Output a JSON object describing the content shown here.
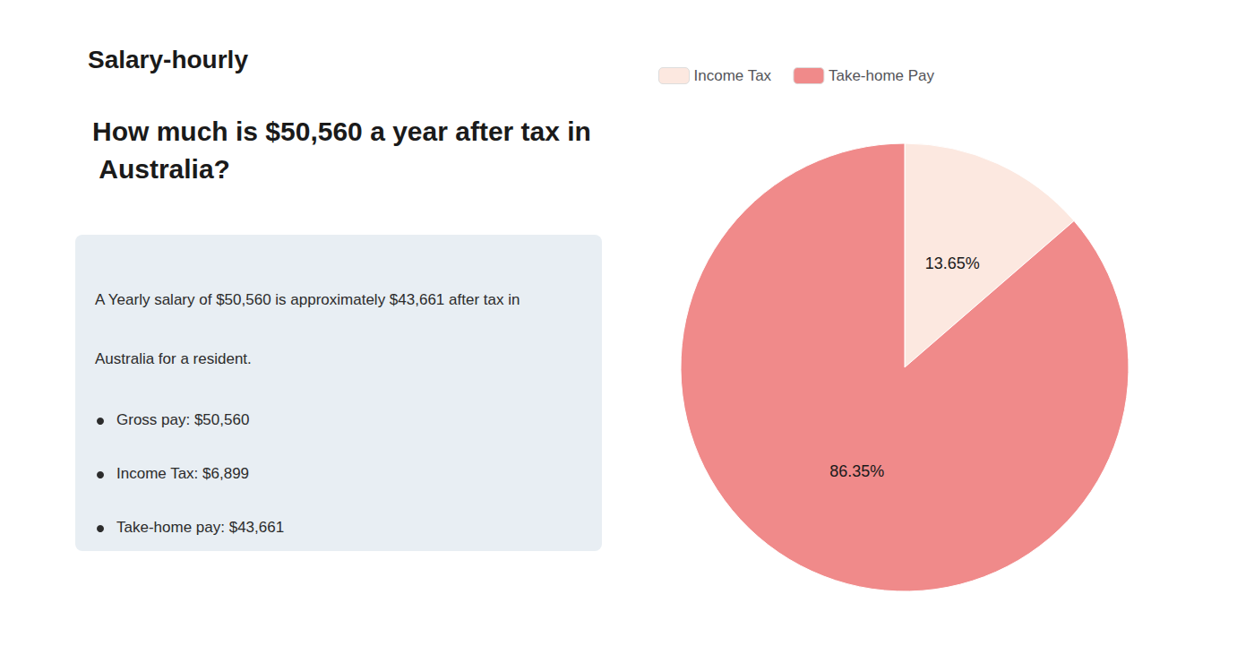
{
  "chart_data": {
    "type": "pie",
    "title": "How much is $50,560 a year after tax in Australia?",
    "categories": [
      "Income Tax",
      "Take-home Pay"
    ],
    "values": [
      13.65,
      86.35
    ],
    "value_labels": [
      "13.65%",
      "86.35%"
    ],
    "colors": [
      "#fce8e0",
      "#f08a8a"
    ],
    "data_labels": true,
    "legend": "upper left",
    "annotations": [
      "Salary-hourly",
      "A Yearly salary of $50,560 is approximately $43,661 after tax in",
      "Australia for a resident.",
      "Gross pay: $50,560",
      "Income Tax: $6,899",
      "Take-home pay: $43,661"
    ]
  }
}
